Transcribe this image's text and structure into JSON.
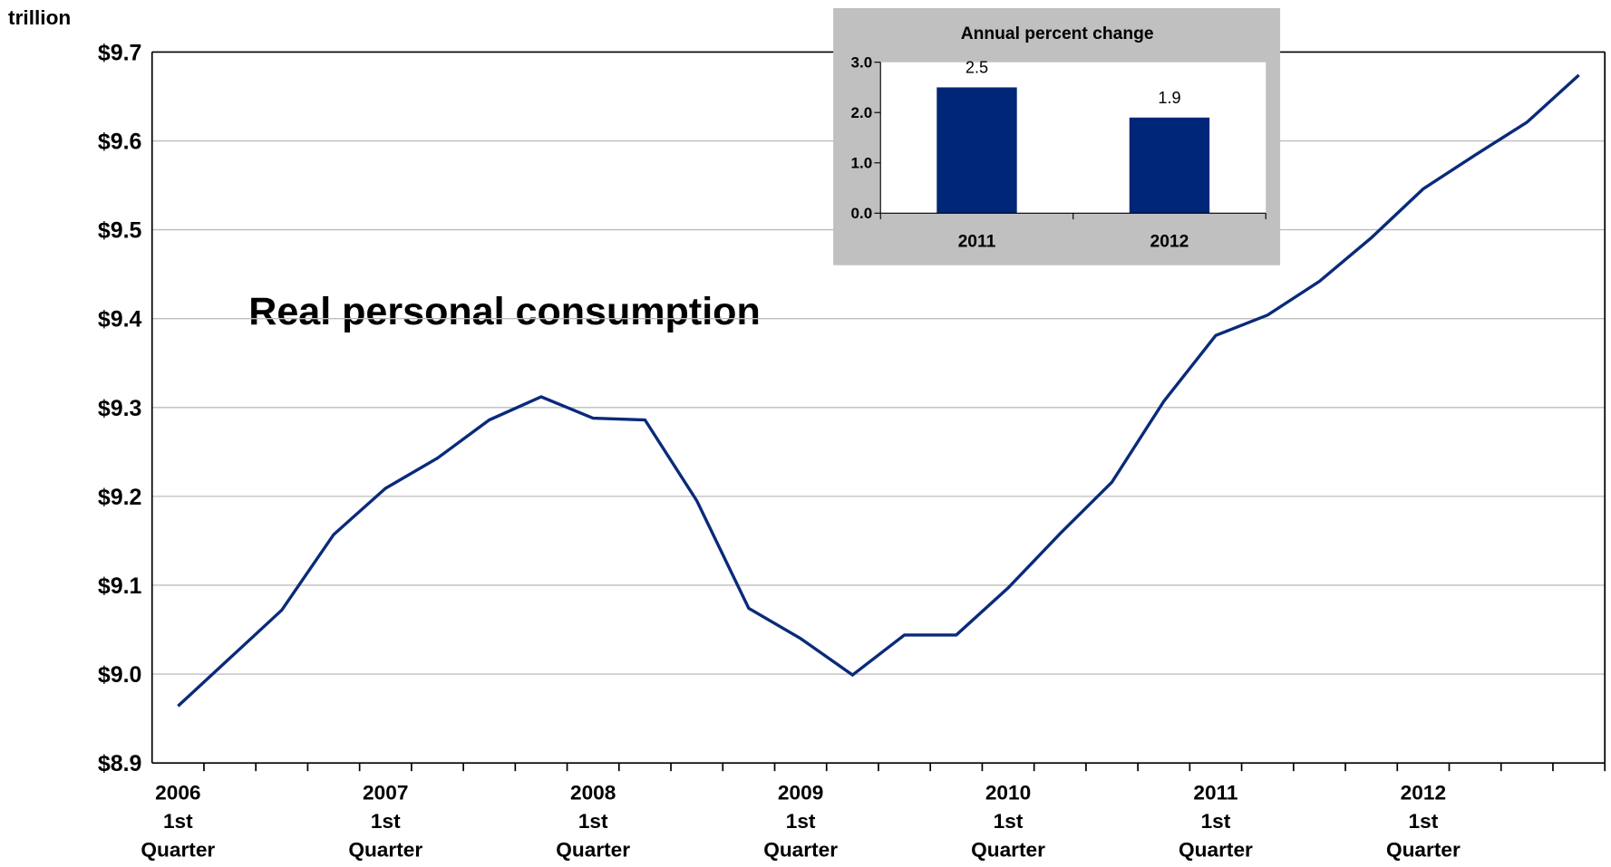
{
  "chart_data": [
    {
      "type": "line",
      "y_axis_label": "trillion",
      "annotation": "Real personal consumption",
      "categories": [
        "2006 1st Quarter",
        null,
        null,
        null,
        "2007 1st Quarter",
        null,
        null,
        null,
        "2008 1st Quarter",
        null,
        null,
        null,
        "2009 1st Quarter",
        null,
        null,
        null,
        "2010 1st Quarter",
        null,
        null,
        null,
        "2011 1st Quarter",
        null,
        null,
        null,
        "2012 1st Quarter",
        null,
        null,
        null
      ],
      "series": [
        {
          "name": "Real personal consumption",
          "color": "#0a2a7a",
          "values": [
            8.964,
            9.018,
            9.072,
            9.157,
            9.209,
            9.243,
            9.286,
            9.312,
            9.288,
            9.286,
            9.195,
            9.074,
            9.04,
            8.999,
            9.044,
            9.044,
            9.097,
            9.158,
            9.216,
            9.307,
            9.381,
            9.404,
            9.442,
            9.491,
            9.546,
            9.584,
            9.621,
            9.674
          ]
        }
      ],
      "ylim": [
        8.9,
        9.7
      ],
      "yticks": [
        {
          "value": 8.9,
          "label": "$8.9"
        },
        {
          "value": 9.0,
          "label": "$9.0"
        },
        {
          "value": 9.1,
          "label": "$9.1"
        },
        {
          "value": 9.2,
          "label": "$9.2"
        },
        {
          "value": 9.3,
          "label": "$9.3"
        },
        {
          "value": 9.4,
          "label": "$9.4"
        },
        {
          "value": 9.5,
          "label": "$9.5"
        },
        {
          "value": 9.6,
          "label": "$9.6"
        },
        {
          "value": 9.7,
          "label": "$9.7"
        }
      ],
      "grid": true
    },
    {
      "type": "bar",
      "title": "Annual percent change",
      "categories": [
        "2011",
        "2012"
      ],
      "values": [
        2.5,
        1.9
      ],
      "color": "#002677",
      "ylim": [
        0,
        3
      ],
      "yticks": [
        {
          "value": 0,
          "label": "0.0"
        },
        {
          "value": 1,
          "label": "1.0"
        },
        {
          "value": 2,
          "label": "2.0"
        },
        {
          "value": 3,
          "label": "3.0"
        }
      ]
    }
  ]
}
